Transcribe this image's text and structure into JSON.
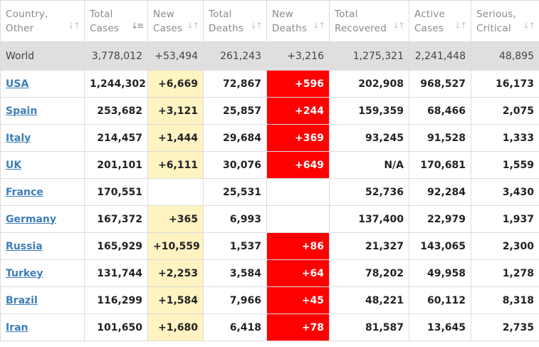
{
  "headers": [
    {
      "label": "Country,\nOther",
      "sort_icon": "sort-icon"
    },
    {
      "label": "Total\nCases",
      "sort_icon": "sort-desc-icon"
    },
    {
      "label": "New\nCases",
      "sort_icon": "sort-icon"
    },
    {
      "label": "Total\nDeaths",
      "sort_icon": "sort-icon"
    },
    {
      "label": "New\nDeaths",
      "sort_icon": "sort-icon"
    },
    {
      "label": "Total\nRecovered",
      "sort_icon": "sort-icon"
    },
    {
      "label": "Active\nCases",
      "sort_icon": "sort-icon"
    },
    {
      "label": "Serious,\nCritical",
      "sort_icon": "sort-icon"
    }
  ],
  "world": [
    "World",
    "3,778,012",
    "+53,494",
    "261,243",
    "+3,216",
    "1,275,321",
    "2,241,448",
    "48,895"
  ],
  "rows": [
    [
      "USA",
      "1,244,302",
      "+6,669",
      "72,867",
      "+596",
      "202,908",
      "968,527",
      "16,173"
    ],
    [
      "Spain",
      "253,682",
      "+3,121",
      "25,857",
      "+244",
      "159,359",
      "68,466",
      "2,075"
    ],
    [
      "Italy",
      "214,457",
      "+1,444",
      "29,684",
      "+369",
      "93,245",
      "91,528",
      "1,333"
    ],
    [
      "UK",
      "201,101",
      "+6,111",
      "30,076",
      "+649",
      "N/A",
      "170,681",
      "1,559"
    ],
    [
      "France",
      "170,551",
      "",
      "25,531",
      "",
      "52,736",
      "92,284",
      "3,430"
    ],
    [
      "Germany",
      "167,372",
      "+365",
      "6,993",
      "",
      "137,400",
      "22,979",
      "1,937"
    ],
    [
      "Russia",
      "165,929",
      "+10,559",
      "1,537",
      "+86",
      "21,327",
      "143,065",
      "2,300"
    ],
    [
      "Turkey",
      "131,744",
      "+2,253",
      "3,584",
      "+64",
      "78,202",
      "49,958",
      "1,278"
    ],
    [
      "Brazil",
      "116,299",
      "+1,584",
      "7,966",
      "+45",
      "48,221",
      "60,112",
      "8,318"
    ],
    [
      "Iran",
      "101,650",
      "+1,680",
      "6,418",
      "+78",
      "81,587",
      "13,645",
      "2,735"
    ]
  ],
  "colors": {
    "new_cases_bg": "#fff3c2",
    "new_deaths_bg": "#ff0000",
    "world_row_bg": "#dfdfdf",
    "country_link": "#3d7eb8"
  }
}
